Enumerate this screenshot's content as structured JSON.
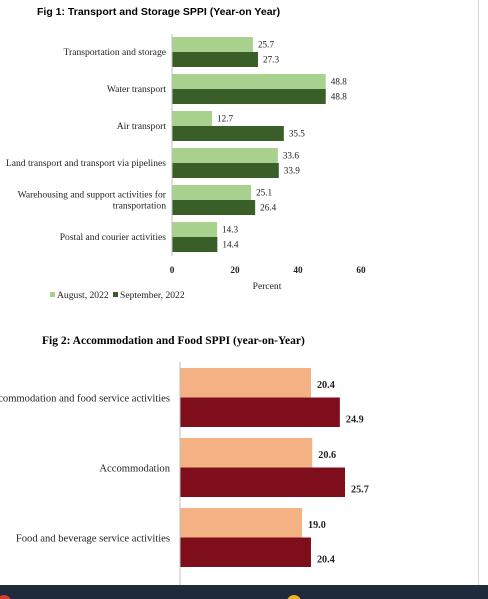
{
  "chart_data": [
    {
      "type": "bar",
      "orientation": "horizontal",
      "title": "Fig 1: Transport and Storage SPPI (Year-on Year)",
      "categories": [
        "Transportation and storage",
        "Water transport",
        "Air transport",
        "Land transport and transport via pipelines",
        "Warehousing and support activities for transportation",
        "Postal and courier activities"
      ],
      "category_lines": [
        [
          "Transportation and storage"
        ],
        [
          "Water transport"
        ],
        [
          "Air transport"
        ],
        [
          "Land transport and transport via pipelines"
        ],
        [
          "Warehousing and support activities for",
          "transportation"
        ],
        [
          "Postal and courier activities"
        ]
      ],
      "series": [
        {
          "name": "August, 2022",
          "color": "#a9d18e",
          "values": [
            25.7,
            48.8,
            12.7,
            33.6,
            25.1,
            14.3
          ]
        },
        {
          "name": "September, 2022",
          "color": "#3a5e27",
          "values": [
            27.3,
            48.8,
            35.5,
            33.9,
            26.4,
            14.4
          ]
        }
      ],
      "xlabel": "Percent",
      "xlim": [
        0,
        60
      ],
      "xticks": [
        0,
        20,
        40,
        60
      ],
      "legend": "bottom-left",
      "grid": false
    },
    {
      "type": "bar",
      "orientation": "horizontal",
      "title": "Fig 2: Accommodation and Food SPPI (year-on-Year)",
      "categories": [
        "Accommodation and food service activities",
        "Accommodation",
        "Food and beverage service activities"
      ],
      "series": [
        {
          "name": "",
          "color": "#f4b183",
          "values": [
            20.4,
            20.6,
            19.0
          ]
        },
        {
          "name": "",
          "color": "#7f0e1c",
          "values": [
            24.9,
            25.7,
            20.4
          ]
        }
      ],
      "grid": false
    }
  ]
}
